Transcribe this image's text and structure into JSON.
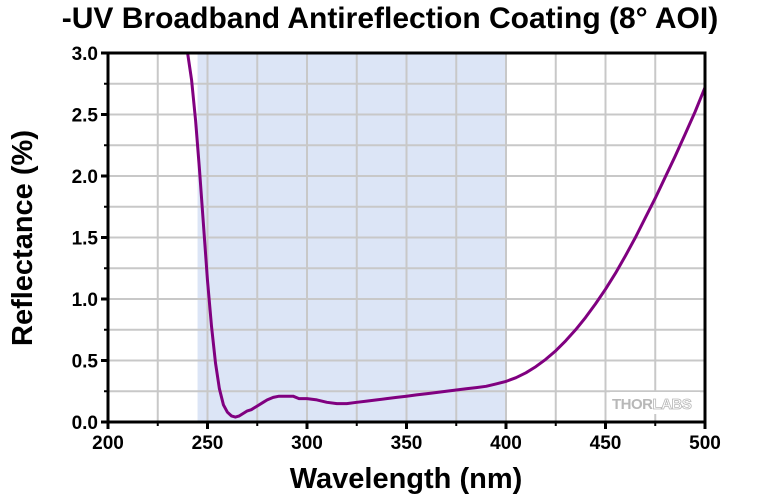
{
  "chart_data": {
    "type": "line",
    "title": "-UV Broadband Antireflection Coating (8° AOI)",
    "xlabel": "Wavelength (nm)",
    "ylabel": "Reflectance (%)",
    "xlim": [
      200,
      500
    ],
    "ylim": [
      0.0,
      3.0
    ],
    "xticks": [
      200,
      250,
      300,
      350,
      400,
      450,
      500
    ],
    "xtick_labels": [
      "200",
      "250",
      "300",
      "350",
      "400",
      "450",
      "500"
    ],
    "yticks": [
      0.0,
      0.5,
      1.0,
      1.5,
      2.0,
      2.5,
      3.0
    ],
    "ytick_labels": [
      "0.0",
      "0.5",
      "1.0",
      "1.5",
      "2.0",
      "2.5",
      "3.0"
    ],
    "grid": true,
    "shaded_band": {
      "x_start": 245,
      "x_end": 400,
      "color": "#dce5f6"
    },
    "series": [
      {
        "name": "Reflectance",
        "color": "#800080",
        "x": [
          240,
          242,
          244,
          246,
          248,
          250,
          252,
          254,
          256,
          258,
          260,
          262,
          264,
          266,
          268,
          270,
          272,
          275,
          278,
          280,
          283,
          286,
          290,
          293,
          296,
          300,
          305,
          310,
          315,
          320,
          325,
          330,
          335,
          340,
          345,
          350,
          355,
          360,
          365,
          370,
          375,
          380,
          385,
          390,
          395,
          400,
          405,
          410,
          415,
          420,
          425,
          430,
          435,
          440,
          445,
          450,
          455,
          460,
          465,
          470,
          475,
          480,
          485,
          490,
          495,
          500
        ],
        "y": [
          3.0,
          2.78,
          2.45,
          2.05,
          1.6,
          1.15,
          0.78,
          0.48,
          0.27,
          0.14,
          0.08,
          0.05,
          0.04,
          0.05,
          0.07,
          0.09,
          0.1,
          0.13,
          0.16,
          0.18,
          0.2,
          0.21,
          0.21,
          0.21,
          0.19,
          0.19,
          0.18,
          0.16,
          0.15,
          0.15,
          0.16,
          0.17,
          0.18,
          0.19,
          0.2,
          0.21,
          0.22,
          0.23,
          0.24,
          0.25,
          0.26,
          0.27,
          0.28,
          0.29,
          0.31,
          0.33,
          0.36,
          0.4,
          0.45,
          0.51,
          0.58,
          0.66,
          0.75,
          0.85,
          0.96,
          1.08,
          1.21,
          1.35,
          1.5,
          1.66,
          1.82,
          1.99,
          2.16,
          2.34,
          2.52,
          2.72
        ]
      }
    ]
  },
  "watermark": {
    "part1": "THOR",
    "part2": "LABS"
  }
}
